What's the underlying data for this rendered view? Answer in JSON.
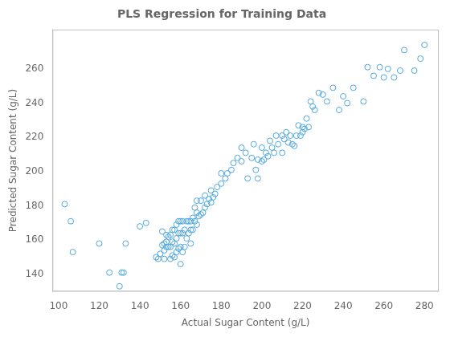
{
  "chart_data": {
    "type": "scatter",
    "title": "PLS Regression for Training Data",
    "xlabel": "Actual Sugar Content (g/L)",
    "ylabel": "Predicted Sugar Content (g/L)",
    "xlim": [
      97,
      287
    ],
    "ylim": [
      130,
      283
    ],
    "xticks": [
      100,
      120,
      140,
      160,
      180,
      200,
      220,
      240,
      260,
      280
    ],
    "yticks": [
      140,
      160,
      180,
      200,
      220,
      240,
      260
    ],
    "color": "#4da6df",
    "marker": "circle",
    "grid": false,
    "x": [
      103,
      106,
      107,
      120,
      125,
      130,
      131,
      132,
      133,
      140,
      143,
      148,
      149,
      150,
      151,
      151,
      152,
      152,
      152,
      153,
      153,
      153,
      154,
      154,
      155,
      155,
      155,
      156,
      156,
      156,
      157,
      157,
      157,
      158,
      158,
      158,
      159,
      159,
      159,
      160,
      160,
      160,
      160,
      161,
      161,
      161,
      162,
      162,
      163,
      163,
      164,
      164,
      165,
      165,
      165,
      166,
      166,
      167,
      167,
      168,
      168,
      168,
      169,
      170,
      170,
      171,
      172,
      172,
      173,
      174,
      175,
      175,
      176,
      177,
      178,
      180,
      180,
      182,
      183,
      185,
      186,
      188,
      190,
      190,
      192,
      193,
      195,
      196,
      197,
      198,
      198,
      200,
      200,
      201,
      202,
      203,
      204,
      205,
      206,
      207,
      208,
      210,
      210,
      211,
      212,
      213,
      214,
      215,
      216,
      217,
      218,
      219,
      220,
      220,
      221,
      222,
      223,
      224,
      225,
      226,
      228,
      230,
      232,
      235,
      238,
      240,
      242,
      245,
      250,
      252,
      255,
      258,
      260,
      262,
      265,
      268,
      270,
      275,
      278,
      280
    ],
    "y": [
      181,
      171,
      153,
      158,
      141,
      133,
      141,
      141,
      158,
      168,
      170,
      150,
      149,
      152,
      157,
      165,
      149,
      154,
      158,
      156,
      159,
      163,
      156,
      162,
      149,
      156,
      163,
      151,
      159,
      166,
      150,
      158,
      166,
      153,
      161,
      169,
      155,
      164,
      171,
      146,
      156,
      164,
      171,
      153,
      164,
      171,
      156,
      166,
      161,
      171,
      164,
      171,
      158,
      166,
      171,
      166,
      173,
      171,
      179,
      169,
      176,
      183,
      174,
      175,
      183,
      176,
      179,
      186,
      181,
      184,
      182,
      189,
      185,
      187,
      191,
      193,
      199,
      196,
      199,
      201,
      205,
      208,
      206,
      214,
      211,
      196,
      208,
      216,
      201,
      196,
      207,
      206,
      214,
      207,
      211,
      209,
      218,
      214,
      211,
      221,
      216,
      211,
      221,
      219,
      223,
      217,
      221,
      216,
      215,
      221,
      227,
      221,
      223,
      226,
      225,
      231,
      226,
      241,
      238,
      236,
      246,
      245,
      241,
      249,
      236,
      244,
      240,
      249,
      241,
      261,
      256,
      261,
      255,
      260,
      255,
      259,
      271,
      259,
      266,
      274
    ]
  }
}
